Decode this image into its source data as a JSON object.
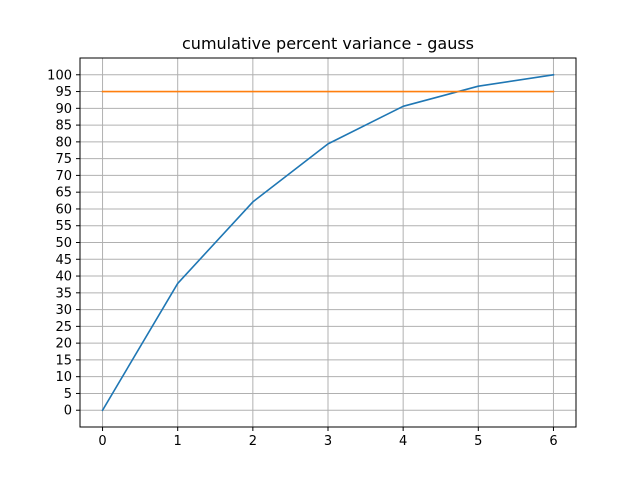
{
  "chart_data": {
    "type": "line",
    "title": "cumulative percent variance - gauss",
    "xlabel": "",
    "ylabel": "",
    "xlim": [
      -0.3,
      6.3
    ],
    "ylim": [
      -5,
      105
    ],
    "xticks": [
      0,
      1,
      2,
      3,
      4,
      5,
      6
    ],
    "yticks": [
      0,
      5,
      10,
      15,
      20,
      25,
      30,
      35,
      40,
      45,
      50,
      55,
      60,
      65,
      70,
      75,
      80,
      85,
      90,
      95,
      100
    ],
    "grid": true,
    "series": [
      {
        "color": "#1f77b4",
        "x": [
          0,
          1,
          2,
          3,
          4,
          5,
          6
        ],
        "y": [
          0,
          37.8,
          62.1,
          79.4,
          90.6,
          96.6,
          100
        ]
      },
      {
        "color": "#ff7f0e",
        "x": [
          0,
          6
        ],
        "y": [
          95,
          95
        ]
      }
    ]
  }
}
